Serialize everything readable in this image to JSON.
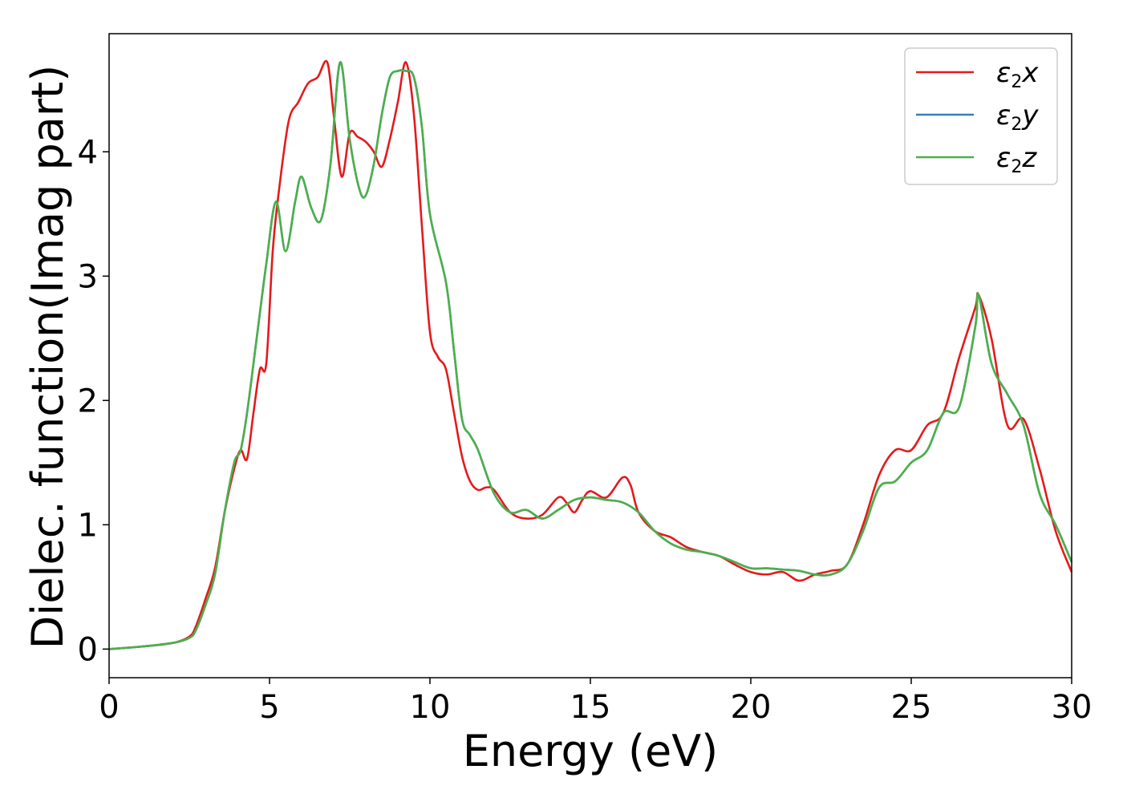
{
  "chart_data": {
    "type": "line",
    "xlabel": "Energy (eV)",
    "ylabel": "Dielec. function(Imag part)",
    "xlim": [
      0,
      30
    ],
    "ylim": [
      -0.23,
      4.95
    ],
    "xticks": [
      0,
      5,
      10,
      15,
      20,
      25,
      30
    ],
    "yticks": [
      0,
      1,
      2,
      3,
      4
    ],
    "grid": false,
    "legend_position": "top-right",
    "series": [
      {
        "name": "x",
        "symbol": "ε",
        "sub": "2",
        "color": "#e41a1c",
        "x": [
          0,
          1,
          2,
          2.5,
          2.7,
          3.0,
          3.3,
          3.6,
          3.9,
          4.1,
          4.3,
          4.5,
          4.7,
          4.9,
          5.1,
          5.3,
          5.6,
          5.9,
          6.2,
          6.5,
          6.8,
          7.0,
          7.25,
          7.5,
          7.75,
          8.0,
          8.25,
          8.5,
          8.75,
          9.0,
          9.25,
          9.5,
          9.75,
          10.0,
          10.25,
          10.5,
          10.75,
          11.0,
          11.25,
          11.5,
          11.75,
          12.0,
          12.5,
          13.0,
          13.5,
          14.0,
          14.25,
          14.5,
          14.75,
          15.0,
          15.5,
          16.0,
          16.25,
          16.5,
          17.0,
          17.5,
          18.0,
          18.5,
          19.0,
          19.5,
          20.0,
          20.5,
          21.0,
          21.5,
          22.0,
          22.5,
          23.0,
          23.5,
          24.0,
          24.5,
          25.0,
          25.5,
          26.0,
          26.5,
          27.0,
          27.1,
          27.5,
          28.0,
          28.5,
          29.0,
          29.5,
          30.0
        ],
        "values": [
          0.0,
          0.02,
          0.05,
          0.1,
          0.18,
          0.4,
          0.65,
          1.1,
          1.45,
          1.6,
          1.53,
          1.9,
          2.25,
          2.3,
          3.2,
          3.7,
          4.25,
          4.4,
          4.55,
          4.6,
          4.72,
          4.3,
          3.8,
          4.15,
          4.12,
          4.08,
          4.0,
          3.88,
          4.1,
          4.4,
          4.72,
          4.3,
          3.4,
          2.55,
          2.35,
          2.25,
          1.9,
          1.55,
          1.35,
          1.28,
          1.3,
          1.28,
          1.1,
          1.05,
          1.08,
          1.22,
          1.18,
          1.1,
          1.2,
          1.27,
          1.22,
          1.38,
          1.32,
          1.1,
          0.95,
          0.9,
          0.82,
          0.78,
          0.75,
          0.68,
          0.62,
          0.6,
          0.62,
          0.55,
          0.6,
          0.63,
          0.68,
          1.0,
          1.4,
          1.6,
          1.6,
          1.8,
          1.9,
          2.35,
          2.75,
          2.85,
          2.5,
          1.8,
          1.85,
          1.45,
          0.95,
          0.62
        ]
      },
      {
        "name": "y",
        "symbol": "ε",
        "sub": "2",
        "color": "#377eb8",
        "x": [
          0,
          1,
          2,
          2.5,
          2.7,
          3.0,
          3.3,
          3.6,
          3.9,
          4.1,
          4.3,
          4.6,
          4.9,
          5.2,
          5.5,
          5.8,
          6.0,
          6.3,
          6.6,
          6.9,
          7.2,
          7.5,
          7.8,
          8.0,
          8.25,
          8.5,
          8.75,
          9.0,
          9.25,
          9.5,
          9.75,
          10.0,
          10.5,
          10.75,
          11.0,
          11.25,
          11.5,
          12.0,
          12.5,
          13.0,
          13.5,
          14.0,
          14.5,
          15.0,
          15.5,
          16.0,
          16.5,
          17.0,
          17.5,
          18.0,
          18.5,
          19.0,
          19.5,
          20.0,
          20.5,
          21.0,
          21.5,
          22.0,
          22.5,
          23.0,
          23.5,
          24.0,
          24.5,
          25.0,
          25.5,
          26.0,
          26.5,
          27.0,
          27.1,
          27.5,
          28.0,
          28.5,
          29.0,
          29.5,
          30.0
        ],
        "values": [
          0.0,
          0.02,
          0.05,
          0.09,
          0.15,
          0.35,
          0.6,
          1.1,
          1.5,
          1.6,
          1.9,
          2.5,
          3.1,
          3.6,
          3.2,
          3.6,
          3.8,
          3.55,
          3.45,
          3.9,
          4.72,
          4.1,
          3.7,
          3.65,
          3.9,
          4.3,
          4.6,
          4.65,
          4.65,
          4.6,
          4.2,
          3.5,
          2.95,
          2.4,
          1.85,
          1.72,
          1.6,
          1.25,
          1.1,
          1.12,
          1.05,
          1.12,
          1.2,
          1.22,
          1.2,
          1.18,
          1.1,
          0.95,
          0.85,
          0.8,
          0.78,
          0.75,
          0.7,
          0.65,
          0.65,
          0.64,
          0.63,
          0.6,
          0.6,
          0.68,
          0.95,
          1.3,
          1.35,
          1.5,
          1.6,
          1.9,
          1.95,
          2.6,
          2.85,
          2.3,
          2.05,
          1.8,
          1.25,
          1.0,
          0.7
        ]
      },
      {
        "name": "z",
        "symbol": "ε",
        "sub": "2",
        "color": "#4daf4a",
        "x": [
          0,
          1,
          2,
          2.5,
          2.7,
          3.0,
          3.3,
          3.6,
          3.9,
          4.1,
          4.3,
          4.6,
          4.9,
          5.2,
          5.5,
          5.8,
          6.0,
          6.3,
          6.6,
          6.9,
          7.2,
          7.5,
          7.8,
          8.0,
          8.25,
          8.5,
          8.75,
          9.0,
          9.25,
          9.5,
          9.75,
          10.0,
          10.5,
          10.75,
          11.0,
          11.25,
          11.5,
          12.0,
          12.5,
          13.0,
          13.5,
          14.0,
          14.5,
          15.0,
          15.5,
          16.0,
          16.5,
          17.0,
          17.5,
          18.0,
          18.5,
          19.0,
          19.5,
          20.0,
          20.5,
          21.0,
          21.5,
          22.0,
          22.5,
          23.0,
          23.5,
          24.0,
          24.5,
          25.0,
          25.5,
          26.0,
          26.5,
          27.0,
          27.1,
          27.5,
          28.0,
          28.5,
          29.0,
          29.5,
          30.0
        ],
        "values": [
          0.0,
          0.02,
          0.05,
          0.09,
          0.15,
          0.35,
          0.6,
          1.1,
          1.5,
          1.6,
          1.9,
          2.5,
          3.1,
          3.6,
          3.2,
          3.6,
          3.8,
          3.55,
          3.45,
          3.9,
          4.72,
          4.1,
          3.7,
          3.65,
          3.9,
          4.3,
          4.6,
          4.65,
          4.65,
          4.6,
          4.2,
          3.5,
          2.95,
          2.4,
          1.85,
          1.72,
          1.6,
          1.25,
          1.1,
          1.12,
          1.05,
          1.12,
          1.2,
          1.22,
          1.2,
          1.18,
          1.1,
          0.95,
          0.85,
          0.8,
          0.78,
          0.75,
          0.7,
          0.65,
          0.65,
          0.64,
          0.63,
          0.6,
          0.6,
          0.68,
          0.95,
          1.3,
          1.35,
          1.5,
          1.6,
          1.9,
          1.95,
          2.6,
          2.85,
          2.3,
          2.05,
          1.8,
          1.25,
          1.0,
          0.7
        ]
      }
    ]
  }
}
